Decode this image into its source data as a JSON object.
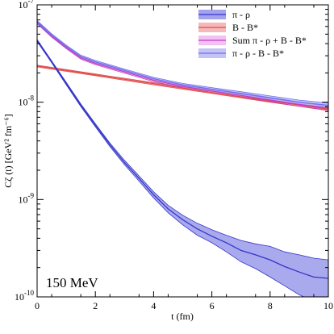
{
  "chart_data": {
    "type": "line",
    "xlabel": "t (fm)",
    "ylabel": "Cζ (t) [GeV² fm⁻⁶]",
    "xlim": [
      0,
      10
    ],
    "ylim": [
      1e-10,
      1e-07
    ],
    "yscale": "log",
    "grid": false,
    "legend_position": "top-right",
    "annotation": "150 MeV",
    "x_ticks": [
      0,
      2,
      4,
      6,
      8,
      10
    ],
    "x_tick_labels": [
      "0",
      "2",
      "4",
      "6",
      "8",
      "10"
    ],
    "y_ticks": [
      1e-10,
      1e-09,
      1e-08,
      1e-07
    ],
    "y_tick_labels": [
      {
        "base": "10",
        "exp": "-10"
      },
      {
        "base": "10",
        "exp": "-9"
      },
      {
        "base": "10",
        "exp": "-8"
      },
      {
        "base": "10",
        "exp": "-7"
      }
    ],
    "series": [
      {
        "name": "π - ρ",
        "line_color": "#3535c8",
        "band_color": "#8c8ce8",
        "x": [
          0,
          0.5,
          1,
          1.5,
          2,
          2.5,
          3,
          3.5,
          4,
          4.5,
          5,
          5.5,
          6,
          6.5,
          7,
          7.5,
          8,
          8.5,
          9,
          9.5,
          10
        ],
        "y": [
          4.3e-08,
          2.6e-08,
          1.55e-08,
          9.3e-09,
          5.8e-09,
          3.65e-09,
          2.4e-09,
          1.65e-09,
          1.12e-09,
          8e-10,
          6.2e-10,
          5e-10,
          4.2e-10,
          3.6e-10,
          3e-10,
          2.7e-10,
          2.4e-10,
          2.05e-10,
          1.8e-10,
          1.6e-10,
          1.55e-10
        ],
        "y_lo": [
          4.2e-08,
          2.54e-08,
          1.51e-08,
          9e-09,
          5.6e-09,
          3.5e-09,
          2.28e-09,
          1.55e-09,
          1.04e-09,
          7.3e-10,
          5.5e-10,
          4.3e-10,
          3.6e-10,
          2.9e-10,
          2.3e-10,
          1.95e-10,
          1.6e-10,
          1.3e-10,
          1.05e-10,
          9e-11,
          1e-10
        ],
        "y_hi": [
          4.4e-08,
          2.66e-08,
          1.6e-08,
          9.6e-09,
          6e-09,
          3.8e-09,
          2.53e-09,
          1.75e-09,
          1.2e-09,
          8.7e-10,
          6.9e-10,
          5.7e-10,
          4.9e-10,
          4.3e-10,
          3.8e-10,
          3.5e-10,
          3.3e-10,
          2.9e-10,
          2.7e-10,
          2.5e-10,
          2.4e-10
        ]
      },
      {
        "name": "B - B*",
        "line_color": "#e04b4b",
        "band_color": "#f4a8a8",
        "x": [
          0,
          2,
          4,
          6,
          8,
          10
        ],
        "y": [
          2.35e-08,
          1.91e-08,
          1.55e-08,
          1.26e-08,
          1.03e-08,
          8.5e-09
        ],
        "y_lo": [
          2.3e-08,
          1.87e-08,
          1.51e-08,
          1.23e-08,
          1e-08,
          8.2e-09
        ],
        "y_hi": [
          2.4e-08,
          1.95e-08,
          1.59e-08,
          1.29e-08,
          1.06e-08,
          8.8e-09
        ]
      },
      {
        "name": "Sum π - ρ + B - B*",
        "line_color": "#c040c0",
        "band_color": "#f0b0f0",
        "x": [
          0,
          0.5,
          1,
          1.5,
          2,
          3,
          4,
          5,
          6,
          7,
          8,
          9,
          10
        ],
        "y": [
          6.6e-08,
          4.8e-08,
          3.65e-08,
          2.85e-08,
          2.5e-08,
          2.05e-08,
          1.68e-08,
          1.45e-08,
          1.3e-08,
          1.17e-08,
          1.05e-08,
          9.5e-09,
          8.7e-09
        ],
        "y_lo": [
          6.4e-08,
          4.65e-08,
          3.55e-08,
          2.77e-08,
          2.43e-08,
          1.99e-08,
          1.63e-08,
          1.41e-08,
          1.26e-08,
          1.13e-08,
          1.01e-08,
          9.1e-09,
          8.3e-09
        ],
        "y_hi": [
          6.8e-08,
          4.95e-08,
          3.75e-08,
          2.93e-08,
          2.57e-08,
          2.11e-08,
          1.73e-08,
          1.49e-08,
          1.34e-08,
          1.21e-08,
          1.09e-08,
          9.9e-09,
          9.1e-09
        ]
      },
      {
        "name": "π - ρ - B - B*",
        "line_color": "#6f6ff0",
        "band_color": "#b4b4f4",
        "x": [
          0,
          0.5,
          1,
          1.5,
          2,
          3,
          4,
          5,
          6,
          7,
          8,
          9,
          10
        ],
        "y": [
          6.7e-08,
          4.9e-08,
          3.75e-08,
          2.95e-08,
          2.6e-08,
          2.12e-08,
          1.74e-08,
          1.51e-08,
          1.36e-08,
          1.23e-08,
          1.11e-08,
          1e-08,
          9.3e-09
        ],
        "y_lo": [
          6.5e-08,
          4.75e-08,
          3.64e-08,
          2.86e-08,
          2.52e-08,
          2.05e-08,
          1.68e-08,
          1.46e-08,
          1.31e-08,
          1.18e-08,
          1.06e-08,
          9.5e-09,
          8.8e-09
        ],
        "y_hi": [
          6.9e-08,
          5.05e-08,
          3.86e-08,
          3.04e-08,
          2.68e-08,
          2.19e-08,
          1.8e-08,
          1.56e-08,
          1.41e-08,
          1.28e-08,
          1.16e-08,
          1.05e-08,
          9.8e-09
        ]
      }
    ]
  }
}
